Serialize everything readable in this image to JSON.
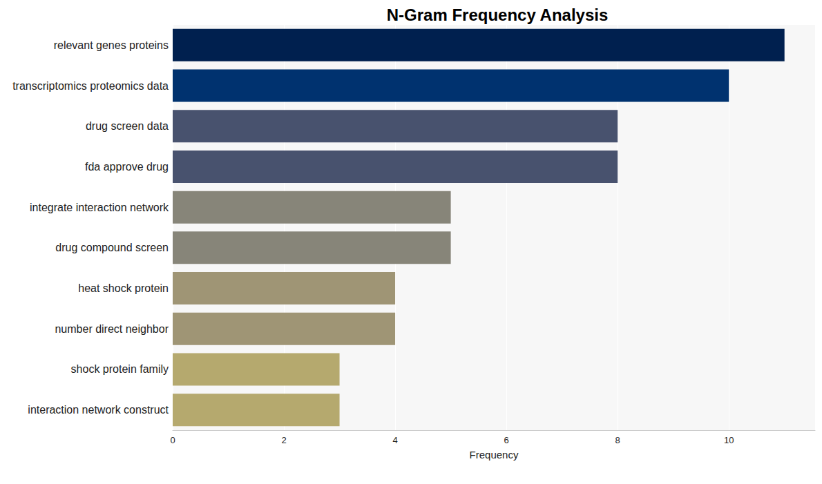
{
  "chart_data": {
    "type": "bar",
    "orientation": "horizontal",
    "title": "N-Gram Frequency Analysis",
    "xlabel": "Frequency",
    "categories": [
      "relevant genes proteins",
      "transcriptomics proteomics data",
      "drug screen data",
      "fda approve drug",
      "integrate interaction network",
      "drug compound screen",
      "heat shock protein",
      "number direct neighbor",
      "shock protein family",
      "interaction network construct"
    ],
    "values": [
      11,
      10,
      8,
      8,
      5,
      5,
      4,
      4,
      3,
      3
    ],
    "colors": [
      "#00204f",
      "#00326f",
      "#48526e",
      "#48526e",
      "#878579",
      "#878579",
      "#9f9575",
      "#9f9575",
      "#b5a96e",
      "#b5a96e"
    ],
    "xlim": [
      0,
      11.55
    ],
    "xticks": [
      0,
      2,
      4,
      6,
      8,
      10
    ],
    "grid": true
  }
}
